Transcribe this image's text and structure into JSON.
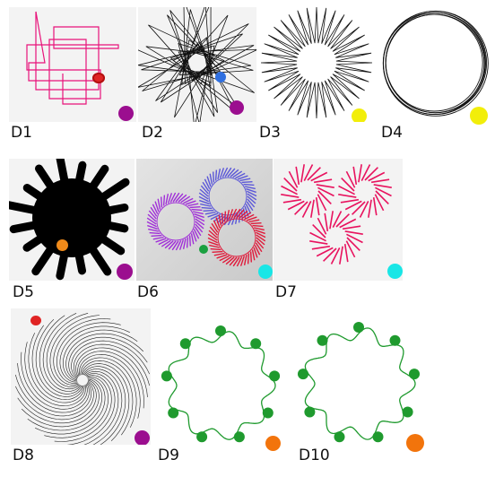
{
  "panels": [
    {
      "label": "D1",
      "dot_color": "#9b0e8f",
      "line_color": "#e8127a"
    },
    {
      "label": "D2",
      "dot_color": "#9b0e8f",
      "line_color": "#111111"
    },
    {
      "label": "D3",
      "dot_color": "#f2ee0a",
      "line_color": "#111111"
    },
    {
      "label": "D4",
      "dot_color": "#f2ee0a",
      "line_color": "#111111"
    },
    {
      "label": "D5",
      "dot_color": "#9b0e8f",
      "line_color": "#000000"
    },
    {
      "label": "D6",
      "dot_color": "#19e6e6",
      "line_color": "#9a2ad8"
    },
    {
      "label": "D7",
      "dot_color": "#19e6e6",
      "line_color": "#e8125e"
    },
    {
      "label": "D8",
      "dot_color": "#9b0e8f",
      "line_color": "#222222"
    },
    {
      "label": "D9",
      "dot_color": "#f2740c",
      "line_color": "#1f9a2e"
    },
    {
      "label": "D10",
      "dot_color": "#f2740c",
      "line_color": "#1f9a2e"
    }
  ],
  "icons": {
    "turtle": "turtle-icon",
    "pattern": "spirograph-pattern-icon"
  }
}
